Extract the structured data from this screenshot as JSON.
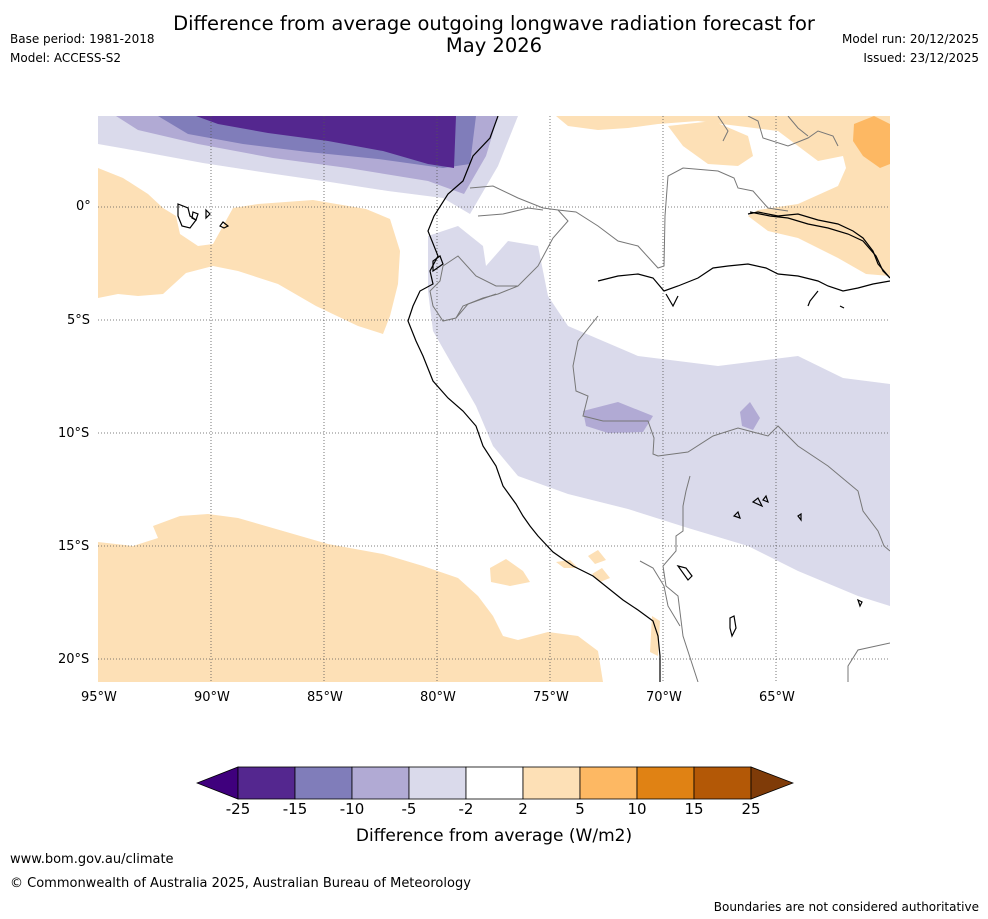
{
  "header": {
    "title_line1": "Difference from average outgoing longwave radiation forecast for",
    "title_line2": "May 2026",
    "base_period": "Base period: 1981-2018",
    "model": "Model: ACCESS-S2",
    "model_run": "Model run: 20/12/2025",
    "issued": "Issued: 23/12/2025"
  },
  "map": {
    "region": "Western South America / Eastern Pacific",
    "lon_labels": [
      "95°W",
      "90°W",
      "85°W",
      "80°W",
      "75°W",
      "70°W",
      "65°W"
    ],
    "lat_labels": [
      "0°",
      "5°S",
      "10°S",
      "15°S",
      "20°S"
    ],
    "gridlines": true
  },
  "colorbar": {
    "ticks": [
      "-25",
      "-15",
      "-10",
      "-5",
      "-2",
      "2",
      "5",
      "10",
      "15",
      "25"
    ],
    "colors": [
      "#3f007d",
      "#54278f",
      "#807dba",
      "#b1aad4",
      "#dadaeb",
      "#ffffff",
      "#fde0b6",
      "#fdb863",
      "#e08214",
      "#b35806",
      "#7f3b08"
    ],
    "label": "Difference from average (W/m2)"
  },
  "footer": {
    "website": "www.bom.gov.au/climate",
    "copyright": "© Commonwealth of Australia 2025, Australian Bureau of Meteorology",
    "disclaimer": "Boundaries are not considered authoritative"
  }
}
